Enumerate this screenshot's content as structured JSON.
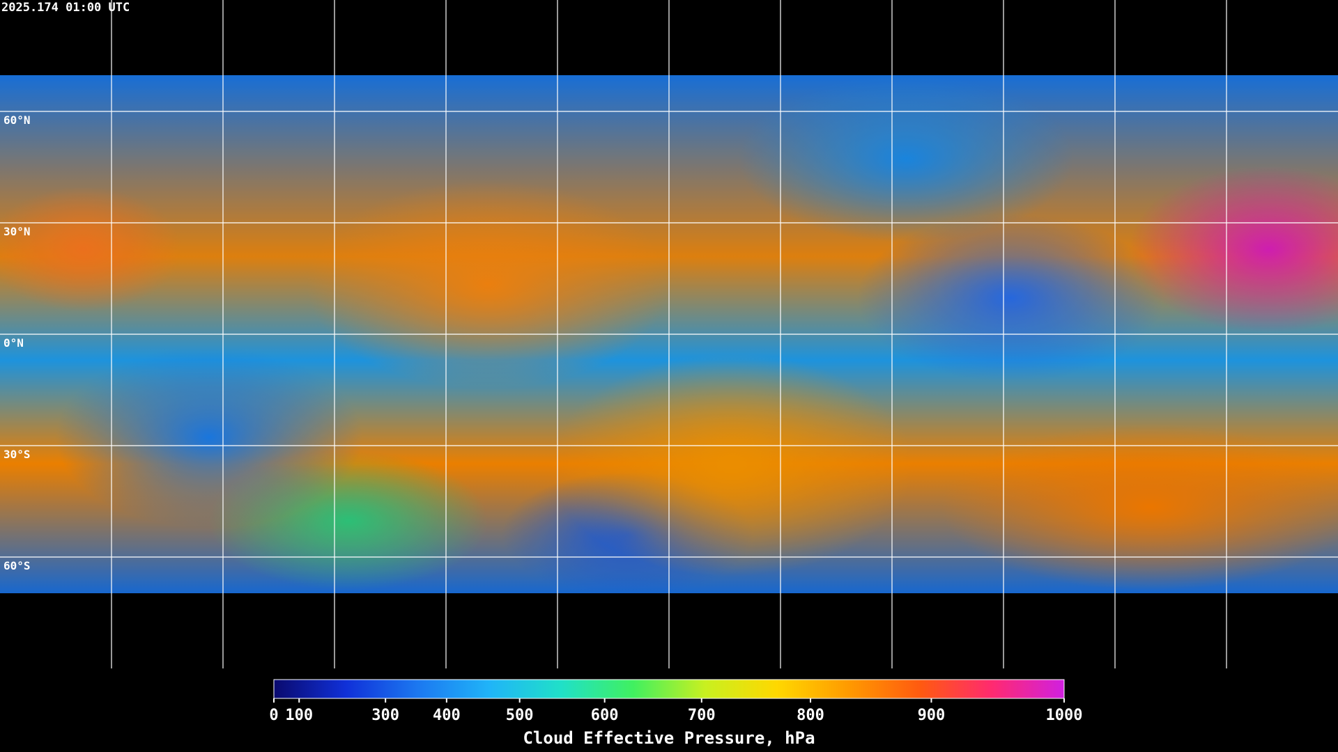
{
  "chart_data": {
    "type": "map",
    "title": "2025.174 01:00 UTC",
    "lat_lines": [
      {
        "value": 60,
        "label": "60°N"
      },
      {
        "value": 30,
        "label": "30°N"
      },
      {
        "value": 0,
        "label": "0°N"
      },
      {
        "value": -30,
        "label": "30°S"
      },
      {
        "value": -60,
        "label": "60°S"
      }
    ],
    "lon_lines": [
      -150,
      -120,
      -90,
      -60,
      -30,
      0,
      30,
      60,
      90,
      120,
      150
    ],
    "colorbar": {
      "label": "Cloud Effective Pressure, hPa",
      "clim": [
        0,
        1000
      ],
      "ticks": [
        0,
        100,
        300,
        400,
        500,
        600,
        700,
        800,
        900,
        1000
      ],
      "colormap": [
        "#0a0a6e",
        "#1030d8",
        "#1c78f0",
        "#20b4f8",
        "#20e0c8",
        "#40f060",
        "#c8f020",
        "#ffd800",
        "#ff9a00",
        "#ff5a10",
        "#ff2a70",
        "#d020e0"
      ]
    }
  }
}
